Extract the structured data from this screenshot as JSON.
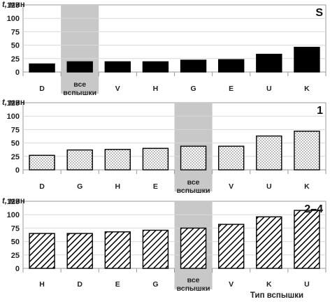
{
  "figure": {
    "xlabel": "Тип вспышки",
    "colors": {
      "bar_solid": "#000000",
      "highlight": "#c8c8c8",
      "axis": "#9a9a9a",
      "gridline": "#d8d8d8"
    }
  },
  "chart_data": [
    {
      "type": "bar",
      "panel_label": "S",
      "ylabel": "t, мин",
      "ylim": [
        0,
        125
      ],
      "yticks": [
        0,
        25,
        50,
        75,
        100,
        125
      ],
      "categories": [
        "D",
        "все вспышки",
        "V",
        "H",
        "G",
        "E",
        "U",
        "K"
      ],
      "values": [
        15,
        19,
        19,
        19,
        22,
        23,
        33,
        46
      ],
      "highlight": "все вспышки",
      "fill": "solid"
    },
    {
      "type": "bar",
      "panel_label": "1",
      "ylabel": "t, мин",
      "ylim": [
        0,
        125
      ],
      "yticks": [
        0,
        25,
        50,
        75,
        100,
        125
      ],
      "categories": [
        "D",
        "G",
        "H",
        "E",
        "все вспышки",
        "V",
        "U",
        "K"
      ],
      "values": [
        27,
        37,
        38,
        40,
        44,
        44,
        63,
        72
      ],
      "highlight": "все вспышки",
      "fill": "dotted"
    },
    {
      "type": "bar",
      "panel_label": "2–4",
      "ylabel": "t, мин",
      "ylim": [
        0,
        125
      ],
      "yticks": [
        0,
        25,
        50,
        75,
        100,
        125
      ],
      "categories": [
        "H",
        "D",
        "E",
        "G",
        "все вспышки",
        "V",
        "K",
        "U"
      ],
      "values": [
        65,
        65,
        68,
        71,
        75,
        82,
        96,
        108
      ],
      "highlight": "все вспышки",
      "fill": "hatched"
    }
  ]
}
